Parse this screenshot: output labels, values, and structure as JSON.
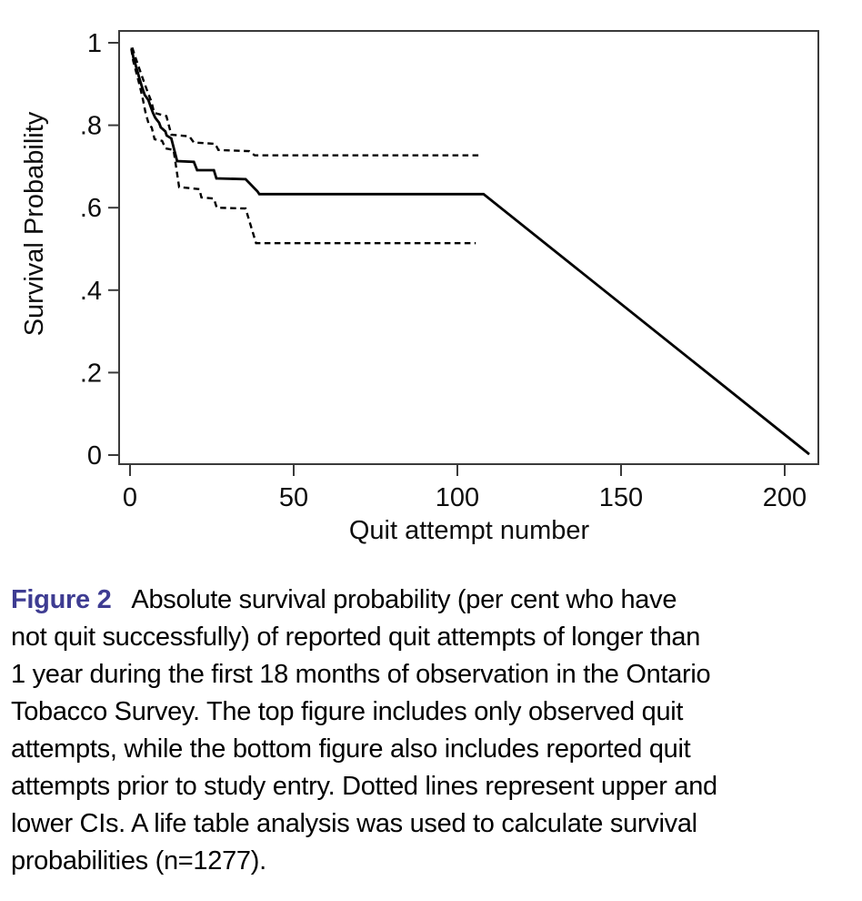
{
  "figure": {
    "label": "Figure 2",
    "label_color": "#3e3c92",
    "caption_lines": [
      "Absolute survival probability (per cent who have",
      "not quit successfully) of reported quit attempts of longer than",
      "1 year during the first 18 months of observation in the Ontario",
      "Tobacco Survey. The top figure includes only observed quit",
      "attempts, while the bottom figure also includes reported quit",
      "attempts prior to study entry. Dotted lines represent upper and",
      "lower CIs. A life table analysis was used to calculate survival",
      "probabilities (n=1277)."
    ]
  },
  "chart_data": {
    "type": "line",
    "title": "",
    "xlabel": "Quit attempt number",
    "ylabel": "Survival Probability",
    "xlim": [
      0,
      210
    ],
    "ylim": [
      0,
      1.03
    ],
    "grid": false,
    "legend": "none",
    "line_color": "#000000",
    "axis_color": "#3a3a3a",
    "x_ticks": [
      {
        "label": "0",
        "value": 0
      },
      {
        "label": "50",
        "value": 50
      },
      {
        "label": "100",
        "value": 100
      },
      {
        "label": "150",
        "value": 150
      },
      {
        "label": "200",
        "value": 200
      }
    ],
    "y_ticks": [
      {
        "label": "1",
        "value": 1.0
      },
      {
        "label": ".8",
        "value": 0.8
      },
      {
        "label": ".6",
        "value": 0.6
      },
      {
        "label": ".4",
        "value": 0.4
      },
      {
        "label": ".2",
        "value": 0.2
      },
      {
        "label": "0",
        "value": 0.0
      }
    ],
    "series": [
      {
        "id": "estimate",
        "name": "Survival estimate",
        "style": "solid",
        "points": [
          [
            0.5,
            0.988
          ],
          [
            1,
            0.965
          ],
          [
            1.5,
            0.952
          ],
          [
            2,
            0.938
          ],
          [
            2.5,
            0.924
          ],
          [
            3,
            0.91
          ],
          [
            3.5,
            0.897
          ],
          [
            4,
            0.885
          ],
          [
            4.5,
            0.873
          ],
          [
            5,
            0.868
          ],
          [
            5.6,
            0.861
          ],
          [
            6.3,
            0.845
          ],
          [
            7,
            0.83
          ],
          [
            7.7,
            0.818
          ],
          [
            8.9,
            0.806
          ],
          [
            9.4,
            0.795
          ],
          [
            10.8,
            0.785
          ],
          [
            11.2,
            0.775
          ],
          [
            12.6,
            0.768
          ],
          [
            14.4,
            0.713
          ],
          [
            19.5,
            0.711
          ],
          [
            20.5,
            0.691
          ],
          [
            25.6,
            0.691
          ],
          [
            26.4,
            0.671
          ],
          [
            35.3,
            0.669
          ],
          [
            38.9,
            0.64
          ],
          [
            39.5,
            0.633
          ],
          [
            108,
            0.633
          ],
          [
            207.5,
            0.002
          ]
        ]
      },
      {
        "id": "upper_ci",
        "name": "Upper CI",
        "style": "dashed",
        "points": [
          [
            0.7,
            0.988
          ],
          [
            1.5,
            0.968
          ],
          [
            2.5,
            0.945
          ],
          [
            3.5,
            0.922
          ],
          [
            4.5,
            0.9
          ],
          [
            5.5,
            0.878
          ],
          [
            6.5,
            0.858
          ],
          [
            7.4,
            0.83
          ],
          [
            11.1,
            0.822
          ],
          [
            12.6,
            0.777
          ],
          [
            18.1,
            0.773
          ],
          [
            19.5,
            0.758
          ],
          [
            26,
            0.755
          ],
          [
            27,
            0.74
          ],
          [
            36.4,
            0.737
          ],
          [
            38.1,
            0.727
          ],
          [
            107.5,
            0.727
          ]
        ]
      },
      {
        "id": "lower_ci",
        "name": "Lower CI",
        "style": "dashed",
        "points": [
          [
            0.4,
            0.985
          ],
          [
            1,
            0.955
          ],
          [
            2,
            0.925
          ],
          [
            3,
            0.895
          ],
          [
            4,
            0.86
          ],
          [
            4.7,
            0.832
          ],
          [
            5.8,
            0.8
          ],
          [
            6.6,
            0.795
          ],
          [
            7.5,
            0.766
          ],
          [
            9.8,
            0.762
          ],
          [
            10.8,
            0.744
          ],
          [
            13.3,
            0.74
          ],
          [
            15,
            0.65
          ],
          [
            21.2,
            0.645
          ],
          [
            21.8,
            0.625
          ],
          [
            25.6,
            0.622
          ],
          [
            26.5,
            0.6
          ],
          [
            35.3,
            0.598
          ],
          [
            38.5,
            0.514
          ],
          [
            105.6,
            0.514
          ]
        ]
      }
    ]
  }
}
